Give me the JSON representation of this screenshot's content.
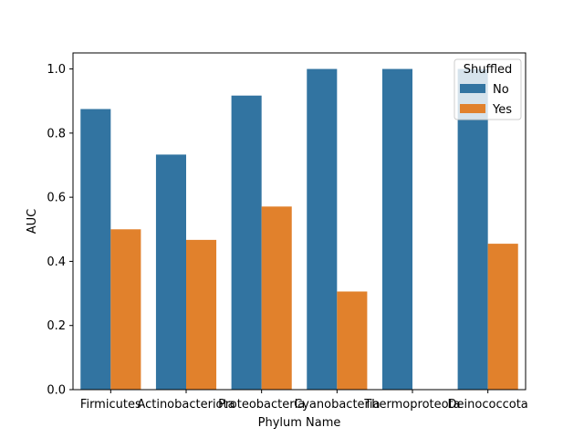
{
  "chart_data": {
    "type": "bar",
    "xlabel": "Phylum Name",
    "ylabel": "AUC",
    "ylim": [
      0,
      1.05
    ],
    "yticks": [
      "0.0",
      "0.2",
      "0.4",
      "0.6",
      "0.8",
      "1.0"
    ],
    "categories": [
      "Firmicutes",
      "Actinobacteriota",
      "Proteobacteria",
      "Cyanobacteria",
      "Thermoproteota",
      "Deinococcota"
    ],
    "legend": {
      "title": "Shuffled",
      "placement": "top-right"
    },
    "grid": false,
    "series": [
      {
        "name": "No",
        "color": "#3274a1",
        "values": [
          0.875,
          0.733,
          0.917,
          1.0,
          1.0,
          1.0
        ]
      },
      {
        "name": "Yes",
        "color": "#e1812c",
        "values": [
          0.5,
          0.467,
          0.571,
          0.306,
          null,
          0.455
        ]
      }
    ]
  }
}
